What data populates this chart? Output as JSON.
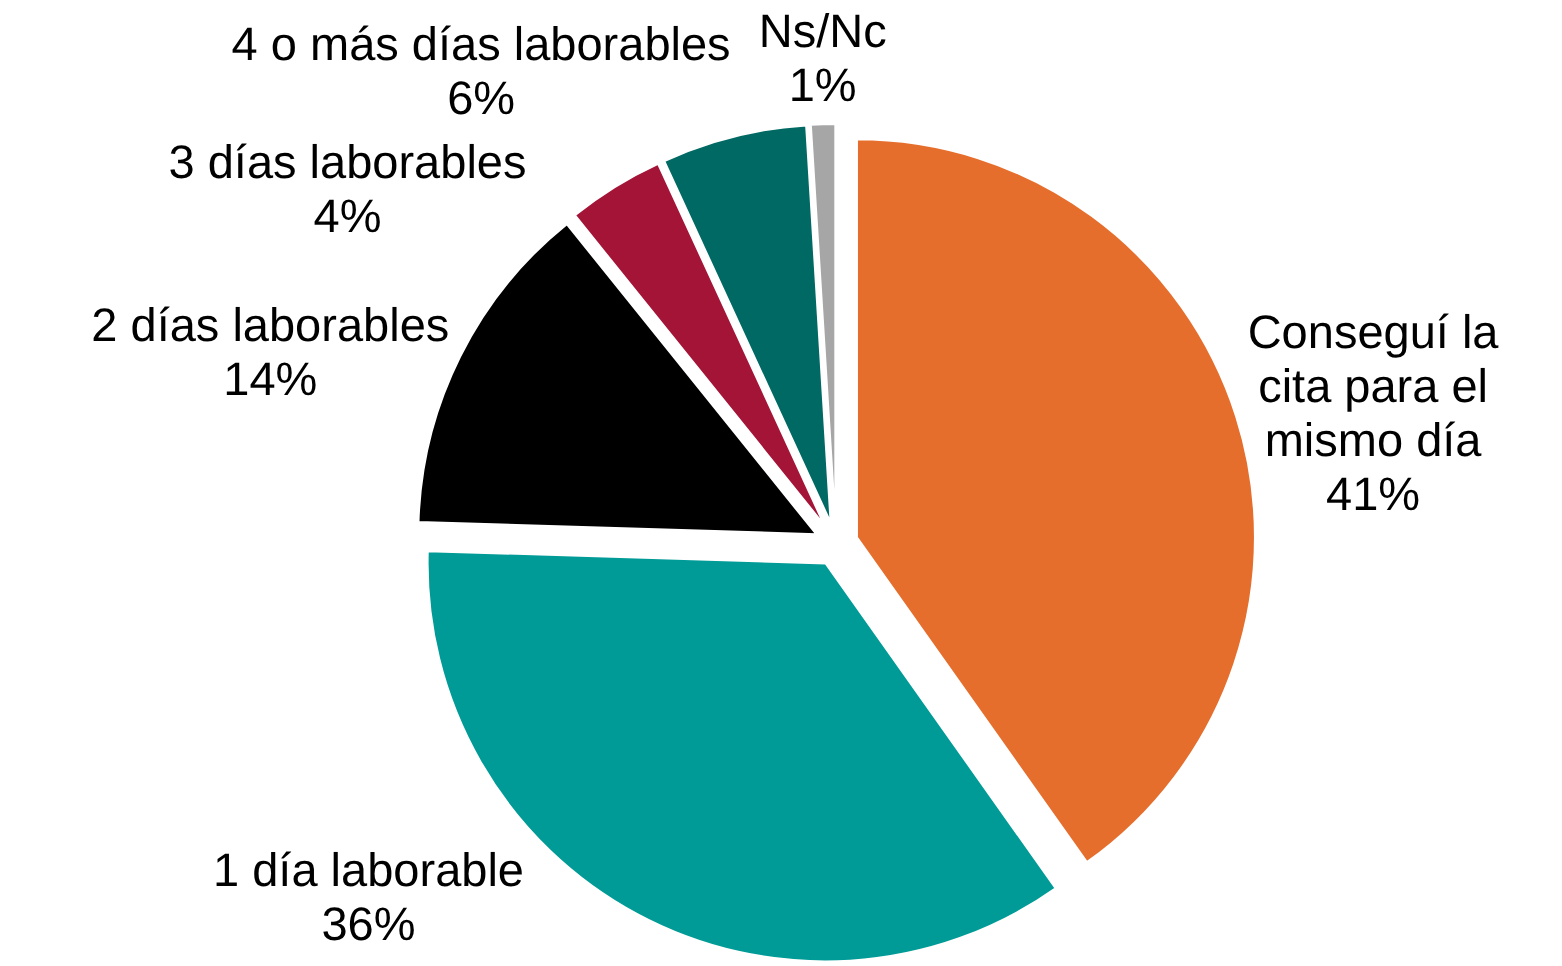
{
  "chart_data": {
    "type": "pie",
    "categories": [
      "Conseguí la cita para el mismo día",
      "1 día laborable",
      "2 días laborables",
      "3 días laborables",
      "4 o más días laborables",
      "Ns/Nc"
    ],
    "values": [
      41,
      36,
      14,
      4,
      6,
      1
    ],
    "colors": [
      "#e66e2d",
      "#009b96",
      "#000000",
      "#a31437",
      "#006964",
      "#a6a6a6"
    ],
    "value_labels": [
      "41%",
      "36%",
      "14%",
      "4%",
      "6%",
      "1%"
    ]
  }
}
